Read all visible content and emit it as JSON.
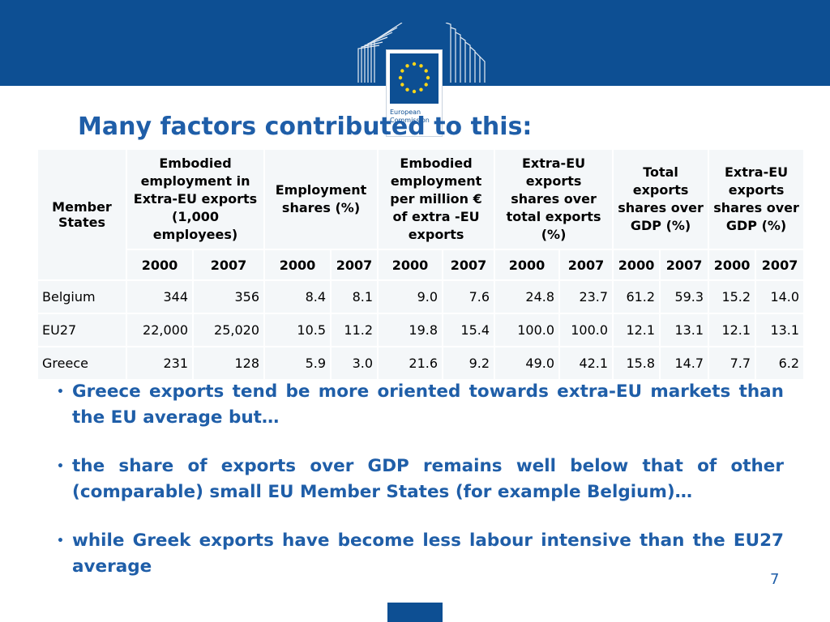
{
  "logo": {
    "line1": "European",
    "line2": "Commission"
  },
  "title": "Many factors contributed to this:",
  "table": {
    "member_header": "Member States",
    "groups": [
      "Embodied employment in Extra-EU exports (1,000 employees)",
      "Employment shares (%)",
      "Embodied employment per million € of extra -EU exports",
      "Extra-EU exports shares over total exports (%)",
      "Total exports shares over GDP (%)",
      "Extra-EU exports shares over GDP (%)"
    ],
    "years": [
      "2000",
      "2007",
      "2000",
      "2007",
      "2000",
      "2007",
      "2000",
      "2007",
      "2000",
      "2007",
      "2000",
      "2007"
    ],
    "rows": [
      {
        "country": "Belgium",
        "values": [
          "344",
          "356",
          "8.4",
          "8.1",
          "9.0",
          "7.6",
          "24.8",
          "23.7",
          "61.2",
          "59.3",
          "15.2",
          "14.0"
        ]
      },
      {
        "country": "EU27",
        "values": [
          "22,000",
          "25,020",
          "10.5",
          "11.2",
          "19.8",
          "15.4",
          "100.0",
          "100.0",
          "12.1",
          "13.1",
          "12.1",
          "13.1"
        ]
      },
      {
        "country": "Greece",
        "values": [
          "231",
          "128",
          "5.9",
          "3.0",
          "21.6",
          "9.2",
          "49.0",
          "42.1",
          "15.8",
          "14.7",
          "7.7",
          "6.2"
        ]
      }
    ]
  },
  "bullets": [
    "Greece exports tend be more oriented towards extra-EU markets than the EU average but…",
    "the share of exports over GDP remains well below that of other (comparable) small EU Member States (for example Belgium)…",
    " while Greek exports have become less labour intensive than the EU27 average"
  ],
  "page_number": "7",
  "colors": {
    "banner": "#0d4f93",
    "title": "#1f5ea8",
    "table_bg": "#f4f7f9"
  }
}
